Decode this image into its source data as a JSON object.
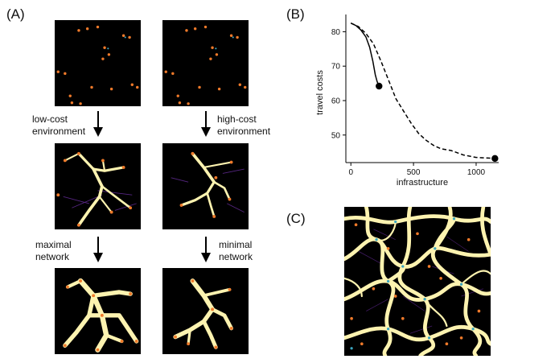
{
  "panel_a": {
    "label": "(A)",
    "left_step1": [
      "low-cost",
      "environment"
    ],
    "right_step1": [
      "high-cost",
      "environment"
    ],
    "left_step2": [
      "maximal",
      "network"
    ],
    "right_step2": [
      "minimal",
      "network"
    ]
  },
  "panel_b": {
    "label": "(B)"
  },
  "panel_c": {
    "label": "(C)"
  },
  "colors": {
    "background_tile": "#000000",
    "network_glow": "#fdf3b0",
    "node": "#f07a2a",
    "node_cyan": "#3aa5c0",
    "faint_edge": "#6a2fa0"
  },
  "chart_data": {
    "type": "line",
    "xlabel": "infrastructure",
    "ylabel": "travel costs",
    "xlim": [
      -40,
      1180
    ],
    "ylim": [
      42,
      85
    ],
    "xticks": [
      0,
      500,
      1000
    ],
    "yticks": [
      40,
      50,
      60,
      70,
      80
    ],
    "series": [
      {
        "style": "solid",
        "points": [
          [
            0,
            82.5
          ],
          [
            40,
            81.8
          ],
          [
            80,
            80.5
          ],
          [
            120,
            78.5
          ],
          [
            150,
            75.5
          ],
          [
            175,
            71.5
          ],
          [
            195,
            67.5
          ],
          [
            210,
            65.5
          ],
          [
            225,
            64.2
          ]
        ],
        "end_marker": [
          225,
          64.2
        ]
      },
      {
        "style": "dashed",
        "points": [
          [
            0,
            82.5
          ],
          [
            60,
            81.5
          ],
          [
            120,
            79.5
          ],
          [
            180,
            76.5
          ],
          [
            240,
            71.5
          ],
          [
            300,
            66
          ],
          [
            360,
            60.5
          ],
          [
            420,
            57
          ],
          [
            480,
            53.5
          ],
          [
            540,
            50.5
          ],
          [
            600,
            48.5
          ],
          [
            660,
            47
          ],
          [
            720,
            46
          ],
          [
            800,
            45.5
          ],
          [
            900,
            44.2
          ],
          [
            1000,
            43.5
          ],
          [
            1100,
            43.3
          ],
          [
            1150,
            43.2
          ]
        ],
        "end_marker": [
          1150,
          43.2
        ]
      }
    ]
  }
}
